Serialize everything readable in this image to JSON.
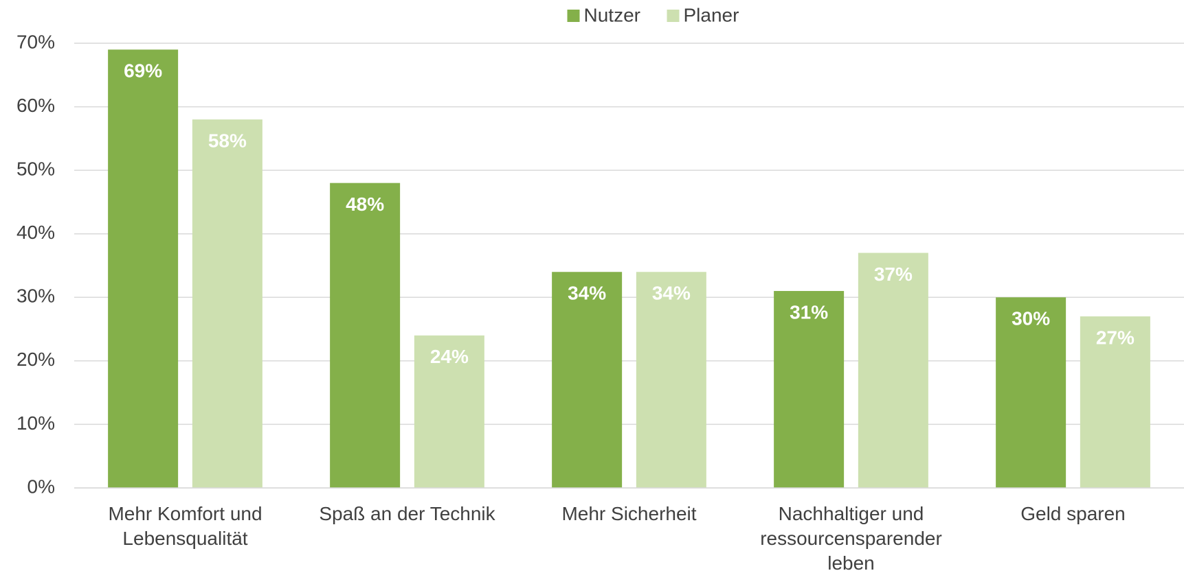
{
  "chart_data": {
    "type": "bar",
    "categories": [
      "Mehr Komfort und Lebensqualität",
      "Spaß an der Technik",
      "Mehr Sicherheit",
      "Nachhaltiger und ressourcensparender leben",
      "Geld sparen"
    ],
    "series": [
      {
        "name": "Nutzer",
        "color": "#84b04a",
        "values": [
          69,
          48,
          34,
          31,
          30
        ],
        "value_labels": [
          "69%",
          "48%",
          "34%",
          "31%",
          "30%"
        ]
      },
      {
        "name": "Planer",
        "color": "#cde0b0",
        "values": [
          58,
          24,
          34,
          37,
          27
        ],
        "value_labels": [
          "58%",
          "24%",
          "34%",
          "37%",
          "27%"
        ]
      }
    ],
    "ylim": [
      0,
      70
    ],
    "yticks": [
      {
        "value": 0,
        "label": "0%"
      },
      {
        "value": 10,
        "label": "10%"
      },
      {
        "value": 20,
        "label": "20%"
      },
      {
        "value": 30,
        "label": "30%"
      },
      {
        "value": 40,
        "label": "40%"
      },
      {
        "value": 50,
        "label": "50%"
      },
      {
        "value": 60,
        "label": "60%"
      },
      {
        "value": 70,
        "label": "70%"
      }
    ],
    "grid": true,
    "legend": "top"
  }
}
